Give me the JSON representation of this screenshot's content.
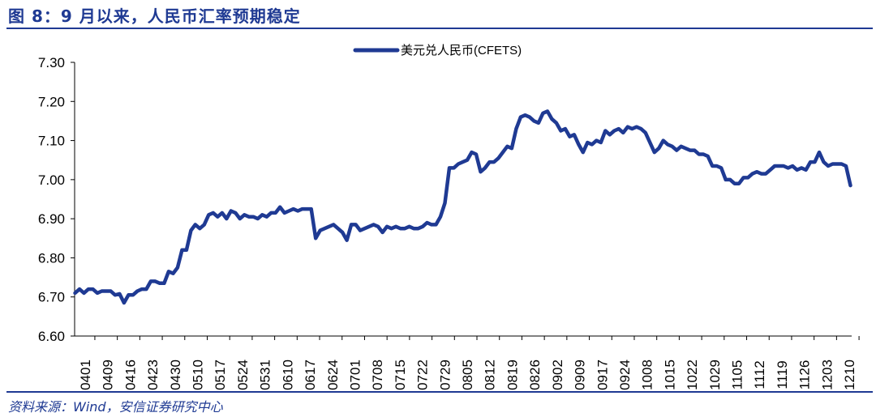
{
  "header": {
    "title": "图 8：9 月以来，人民币汇率预期稳定"
  },
  "footer": {
    "source": "资料来源：Wind，安信证券研究中心"
  },
  "colors": {
    "accent": "#1f3a93",
    "series": "#1f3a93"
  },
  "chart_data": {
    "type": "line",
    "ylim": [
      6.6,
      7.3
    ],
    "yticks": [
      "6.60",
      "6.70",
      "6.80",
      "6.90",
      "7.00",
      "7.10",
      "7.20",
      "7.30"
    ],
    "xticks": [
      "0401",
      "0409",
      "0416",
      "0423",
      "0430",
      "0510",
      "0517",
      "0524",
      "0531",
      "0610",
      "0617",
      "0624",
      "0701",
      "0708",
      "0715",
      "0722",
      "0729",
      "0805",
      "0812",
      "0819",
      "0826",
      "0902",
      "0909",
      "0917",
      "0924",
      "1008",
      "1015",
      "1022",
      "1029",
      "1105",
      "1112",
      "1119",
      "1126",
      "1203",
      "1210"
    ],
    "grid": false,
    "legend_position": "top-center",
    "series": [
      {
        "name": "美元兑人民币(CFETS)",
        "values": [
          6.71,
          6.72,
          6.71,
          6.72,
          6.72,
          6.71,
          6.715,
          6.715,
          6.715,
          6.705,
          6.708,
          6.685,
          6.705,
          6.705,
          6.715,
          6.72,
          6.72,
          6.74,
          6.74,
          6.735,
          6.735,
          6.765,
          6.76,
          6.775,
          6.82,
          6.82,
          6.87,
          6.885,
          6.875,
          6.885,
          6.91,
          6.915,
          6.905,
          6.915,
          6.9,
          6.92,
          6.915,
          6.9,
          6.91,
          6.905,
          6.905,
          6.9,
          6.91,
          6.905,
          6.915,
          6.915,
          6.93,
          6.915,
          6.92,
          6.925,
          6.92,
          6.925,
          6.925,
          6.925,
          6.85,
          6.87,
          6.875,
          6.88,
          6.885,
          6.875,
          6.865,
          6.845,
          6.885,
          6.885,
          6.87,
          6.875,
          6.88,
          6.885,
          6.88,
          6.865,
          6.88,
          6.875,
          6.88,
          6.875,
          6.875,
          6.88,
          6.875,
          6.875,
          6.88,
          6.89,
          6.885,
          6.885,
          6.905,
          6.94,
          7.03,
          7.03,
          7.04,
          7.045,
          7.05,
          7.07,
          7.065,
          7.02,
          7.03,
          7.045,
          7.045,
          7.055,
          7.07,
          7.085,
          7.08,
          7.13,
          7.16,
          7.165,
          7.16,
          7.15,
          7.145,
          7.17,
          7.175,
          7.155,
          7.145,
          7.125,
          7.13,
          7.11,
          7.115,
          7.09,
          7.07,
          7.095,
          7.09,
          7.1,
          7.095,
          7.125,
          7.115,
          7.125,
          7.13,
          7.12,
          7.135,
          7.13,
          7.135,
          7.13,
          7.12,
          7.095,
          7.07,
          7.08,
          7.1,
          7.09,
          7.085,
          7.075,
          7.085,
          7.08,
          7.075,
          7.075,
          7.065,
          7.065,
          7.06,
          7.035,
          7.035,
          7.03,
          7.0,
          7.0,
          6.99,
          6.99,
          7.005,
          7.005,
          7.015,
          7.02,
          7.015,
          7.015,
          7.025,
          7.035,
          7.035,
          7.035,
          7.03,
          7.035,
          7.025,
          7.03,
          7.025,
          7.045,
          7.045,
          7.07,
          7.045,
          7.035,
          7.04,
          7.04,
          7.04,
          7.035,
          6.985
        ]
      }
    ]
  }
}
